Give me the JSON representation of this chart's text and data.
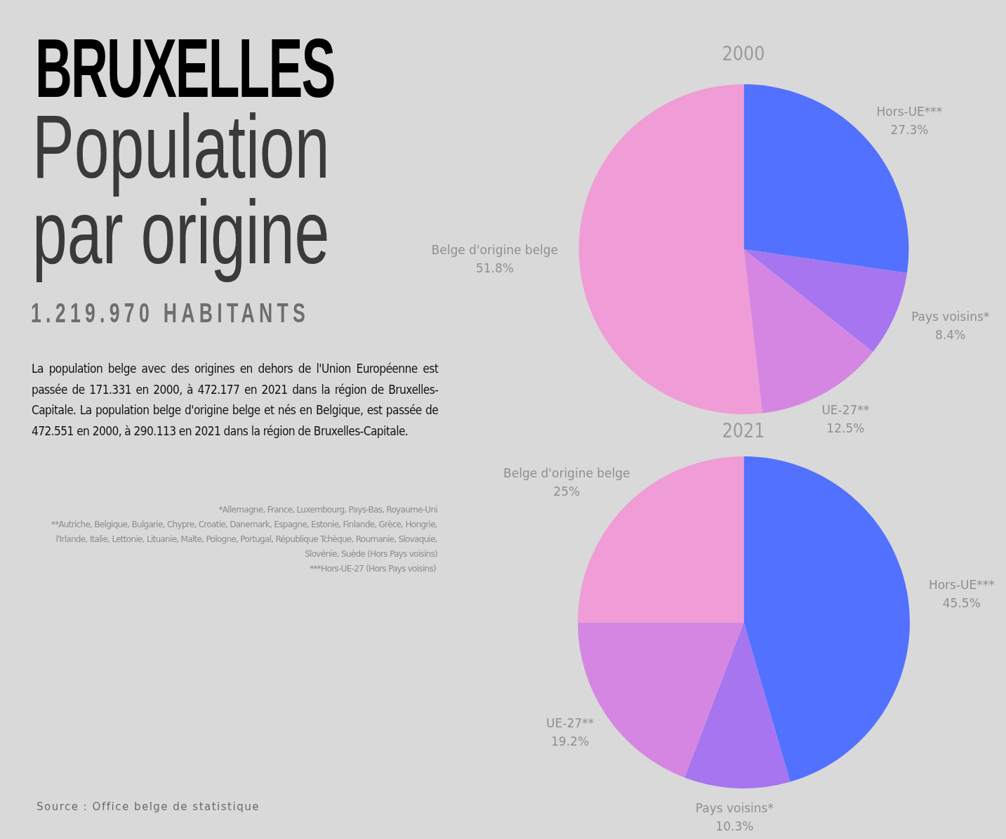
{
  "chart_data": [
    {
      "type": "other",
      "title": "BRUXELLES",
      "subtitle": "Population par origine",
      "annotations": [
        "1.219.970 HABITANTS",
        "La population belge avec des origines en dehors de l'Union Européenne est passée de 171.331 en 2000, à 472.177 en 2021 dans la région de Bruxelles-Capitale. La population belge d'origine belge et nés en Belgique, est passée de 472.551 en 2000, à 290.113 en 2021 dans la région de Bruxelles-Capitale.",
        "*Allemagne, France, Luxembourg, Pays-Bas, Royaume-Uni",
        "**Autriche, Belgique, Bulgarie, Chypre, Croatie, Danemark, Espagne, Estonie, Finlande, Grèce, Hongrie, l'Irlande, Italie, Lettonie, Lituanie, Malte, Pologne, Portugal, République Tchèque, Roumanie, Slovaquie, Slovénie, Suède (Hors Pays voisins)",
        "***Hors-UE-27 (Hors Pays voisins)",
        "Source : Office belge de statistique"
      ]
    },
    {
      "type": "pie",
      "title": "2000",
      "categories": [
        "Hors-UE***",
        "Pays voisins*",
        "UE-27**",
        "Belge d'origine belge"
      ],
      "values": [
        27.3,
        8.4,
        12.5,
        51.8
      ],
      "value_labels": [
        "27.3%",
        "8.4%",
        "12.5%",
        "51.8%"
      ],
      "colors": [
        "#5271ff",
        "#a675ef",
        "#d586e3",
        "#f09cd6"
      ]
    },
    {
      "type": "pie",
      "title": "2021",
      "categories": [
        "Hors-UE***",
        "Pays voisins*",
        "UE-27**",
        "Belge d'origine belge"
      ],
      "values": [
        45.5,
        10.3,
        19.2,
        25
      ],
      "value_labels": [
        "45.5%",
        "10.3%",
        "19.2%",
        "25%"
      ],
      "colors": [
        "#5271ff",
        "#a675ef",
        "#d586e3",
        "#f09cd6"
      ]
    }
  ]
}
